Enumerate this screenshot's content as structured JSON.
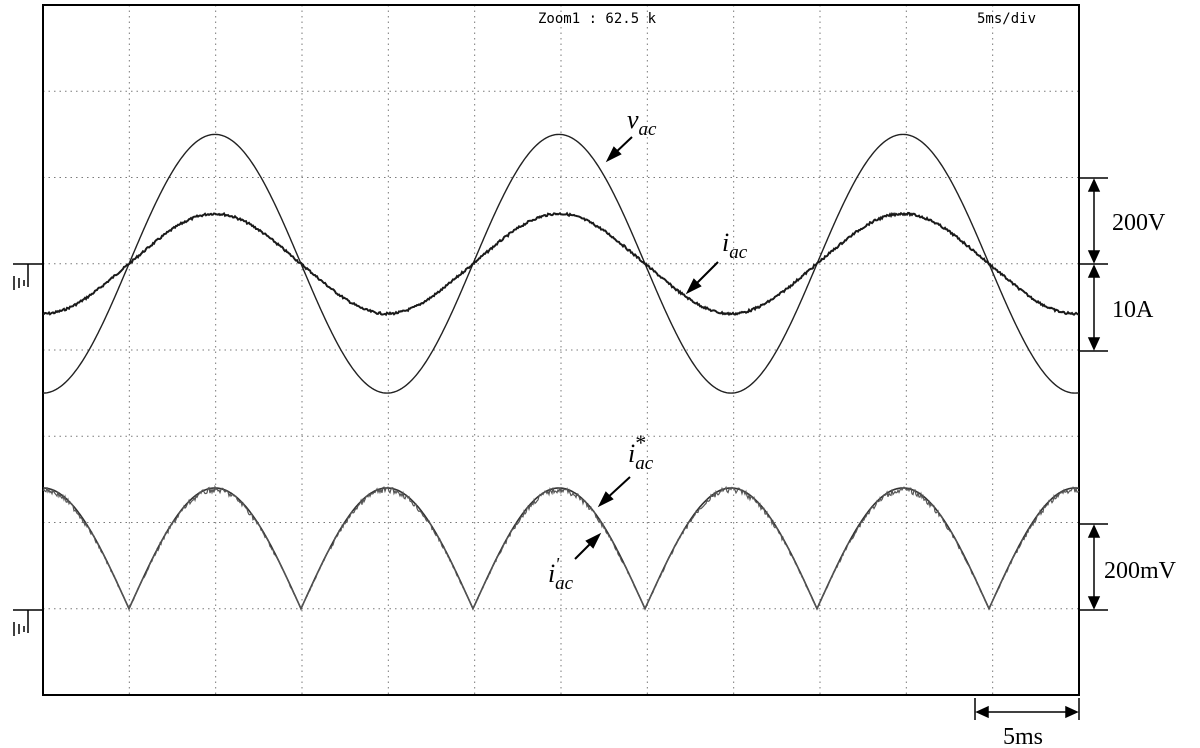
{
  "screen": {
    "zoom_label": "Zoom1 : 62.5 k",
    "timebase_label": "5ms/div"
  },
  "chart_data": {
    "type": "line",
    "time_per_div_ms": 5,
    "xlim_ms": [
      0,
      60
    ],
    "grid": true,
    "grid_divisions": {
      "x": 12,
      "y": 8
    },
    "annotations": {
      "vac": {
        "base": "v",
        "sub": "ac"
      },
      "iac": {
        "base": "i",
        "sub": "ac"
      },
      "iac_ref": {
        "base": "i",
        "sub": "ac",
        "sup": "*"
      },
      "iac_meas": {
        "base": "i",
        "sub": "ac",
        "sup": "'"
      }
    },
    "scales": [
      {
        "label": "200V",
        "per_div": "200V"
      },
      {
        "label": "10A",
        "per_div": "10A"
      },
      {
        "label": "200mV",
        "per_div": "200mV"
      }
    ],
    "time_scale_label": "5ms",
    "series": [
      {
        "key": "vac",
        "shape": "sine",
        "amplitude_div": 1.5,
        "phase_deg": 0,
        "freq_hz": 50,
        "ground_div": 0
      },
      {
        "key": "iac",
        "shape": "sine",
        "amplitude_div": 0.58,
        "phase_deg": 0,
        "freq_hz": 50,
        "ground_div": 0
      },
      {
        "key": "iac_ref",
        "shape": "abs-sine",
        "amplitude_div": 1.4,
        "freq_hz": 50,
        "ground_div": -4
      },
      {
        "key": "iac_meas",
        "shape": "abs-sine",
        "amplitude_div": 1.4,
        "freq_hz": 50,
        "ground_div": -4
      }
    ]
  }
}
